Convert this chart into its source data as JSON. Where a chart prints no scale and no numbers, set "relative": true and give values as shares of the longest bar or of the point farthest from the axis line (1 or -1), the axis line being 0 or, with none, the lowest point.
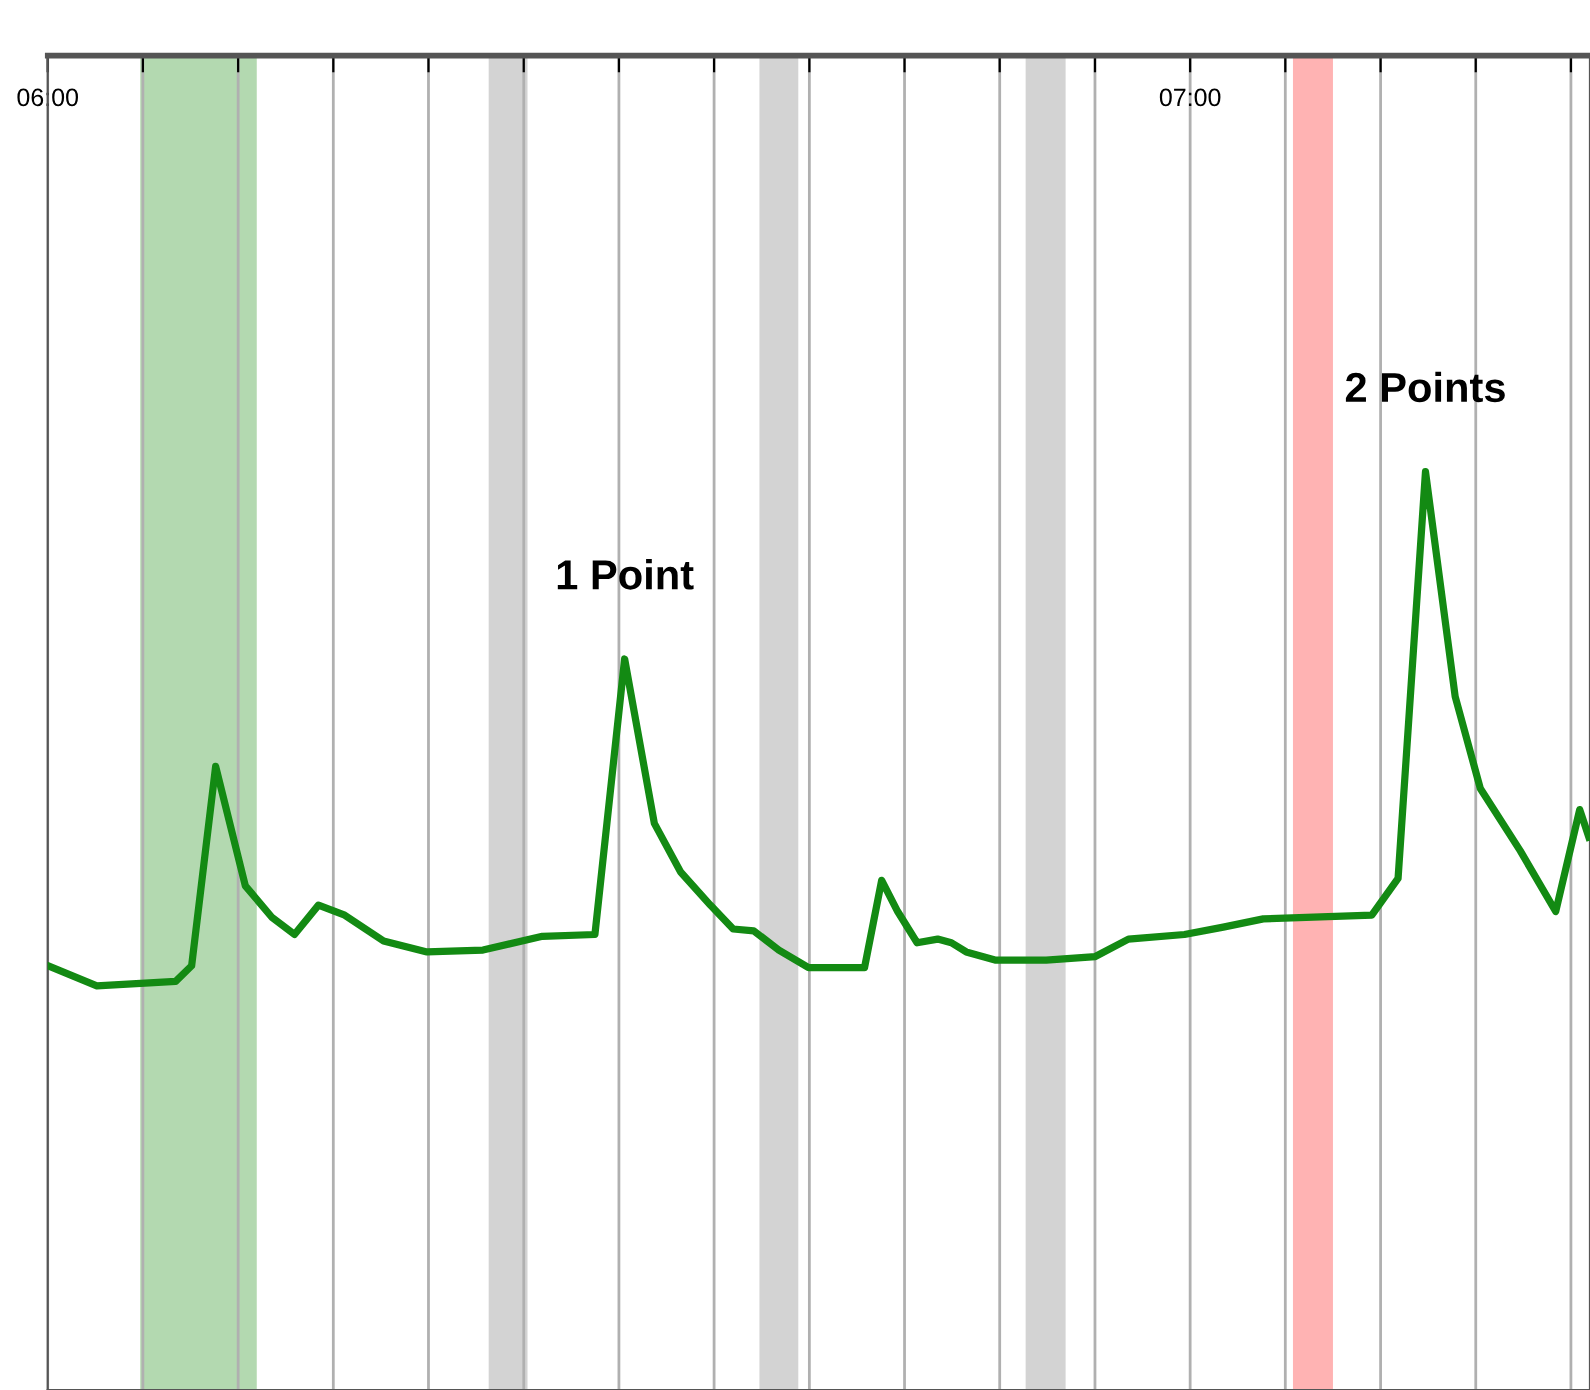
{
  "chart_data": {
    "type": "line",
    "relative": true,
    "x": [
      6.0,
      6.043,
      6.112,
      6.126,
      6.147,
      6.173,
      6.196,
      6.216,
      6.237,
      6.26,
      6.294,
      6.332,
      6.381,
      6.433,
      6.479,
      6.505,
      6.531,
      6.554,
      6.58,
      6.6,
      6.618,
      6.64,
      6.666,
      6.715,
      6.73,
      6.744,
      6.761,
      6.779,
      6.791,
      6.804,
      6.83,
      6.874,
      6.917,
      6.946,
      6.995,
      7.029,
      7.064,
      7.159,
      7.182,
      7.206,
      7.232,
      7.254,
      7.289,
      7.32,
      7.341,
      7.349
    ],
    "series": [
      {
        "color": "#138a13",
        "values": [
          0.462,
          0.44,
          0.445,
          0.462,
          0.679,
          0.549,
          0.515,
          0.496,
          0.528,
          0.517,
          0.489,
          0.477,
          0.479,
          0.494,
          0.496,
          0.796,
          0.617,
          0.564,
          0.528,
          0.502,
          0.5,
          0.479,
          0.46,
          0.46,
          0.555,
          0.521,
          0.487,
          0.491,
          0.487,
          0.477,
          0.468,
          0.468,
          0.472,
          0.491,
          0.496,
          0.504,
          0.513,
          0.517,
          0.557,
          1.0,
          0.755,
          0.655,
          0.587,
          0.521,
          0.632,
          0.602
        ]
      }
    ],
    "xlim": [
      6.0,
      7.35
    ],
    "xticks": [
      {
        "value": 6,
        "label": "06:00"
      },
      {
        "value": 6.0833,
        "label": null
      },
      {
        "value": 6.1667,
        "label": null
      },
      {
        "value": 6.25,
        "label": null
      },
      {
        "value": 6.3333,
        "label": null
      },
      {
        "value": 6.4167,
        "label": null
      },
      {
        "value": 6.5,
        "label": null
      },
      {
        "value": 6.5833,
        "label": null
      },
      {
        "value": 6.6667,
        "label": null
      },
      {
        "value": 6.75,
        "label": null
      },
      {
        "value": 6.8333,
        "label": null
      },
      {
        "value": 6.9167,
        "label": null
      },
      {
        "value": 7,
        "label": "07:00"
      },
      {
        "value": 7.0833,
        "label": null
      },
      {
        "value": 7.1667,
        "label": null
      },
      {
        "value": 7.25,
        "label": null
      },
      {
        "value": 7.3333,
        "label": null
      }
    ],
    "bands": [
      {
        "axis": "x",
        "from": 6.081,
        "to": 6.183,
        "color": "#b3d9b0"
      },
      {
        "axis": "x",
        "from": 6.386,
        "to": 6.42,
        "color": "#d3d3d3"
      },
      {
        "axis": "x",
        "from": 6.623,
        "to": 6.657,
        "color": "#d3d3d3"
      },
      {
        "axis": "x",
        "from": 6.856,
        "to": 6.891,
        "color": "#d3d3d3"
      },
      {
        "axis": "x",
        "from": 7.09,
        "to": 7.125,
        "color": "#ffb3b3"
      }
    ],
    "annotations": [
      {
        "text": "1 Point",
        "x": 6.505,
        "y": 0.796
      },
      {
        "text": "2 Points",
        "x": 7.206,
        "y": 1.0
      }
    ],
    "grid": "x",
    "line_style": "solid",
    "marker": "none"
  }
}
